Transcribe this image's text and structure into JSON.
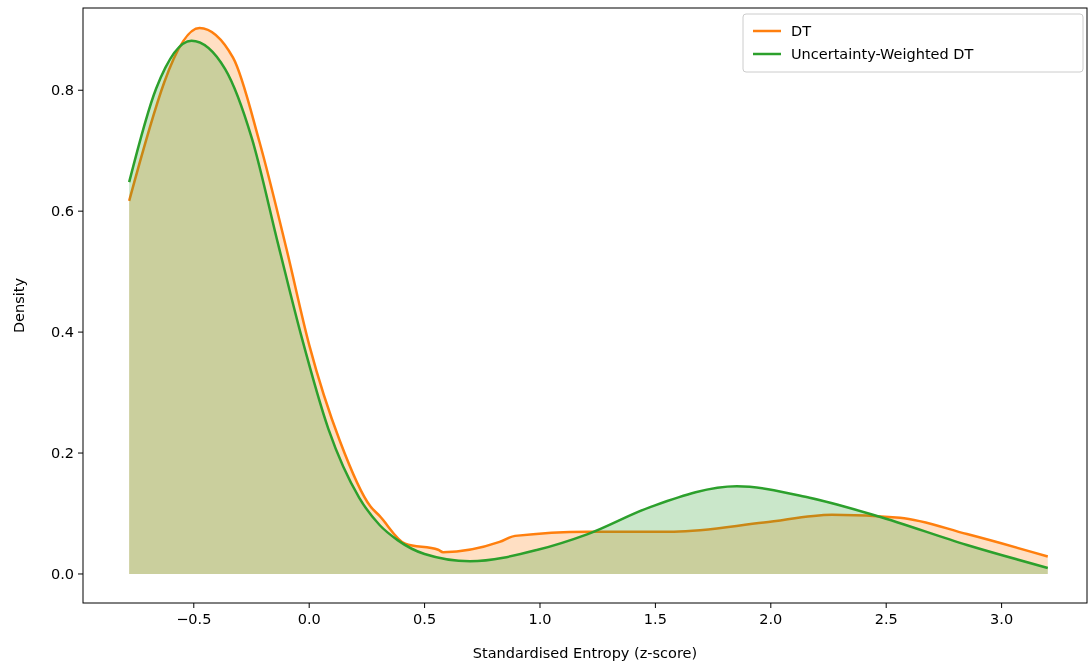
{
  "chart_data": {
    "type": "area",
    "xlabel": "Standardised Entropy (z-score)",
    "ylabel": "Density",
    "xlim": [
      -0.98,
      3.37
    ],
    "ylim": [
      -0.048,
      0.936
    ],
    "xticks": [
      {
        "value": -0.5,
        "label": "−0.5"
      },
      {
        "value": 0,
        "label": "0.0"
      },
      {
        "value": 0.5,
        "label": "0.5"
      },
      {
        "value": 1,
        "label": "1.0"
      },
      {
        "value": 1.5,
        "label": "1.5"
      },
      {
        "value": 2,
        "label": "2.0"
      },
      {
        "value": 2.5,
        "label": "2.5"
      },
      {
        "value": 3,
        "label": "3.0"
      }
    ],
    "yticks": [
      {
        "value": 0,
        "label": "0.0"
      },
      {
        "value": 0.2,
        "label": "0.2"
      },
      {
        "value": 0.4,
        "label": "0.4"
      },
      {
        "value": 0.6,
        "label": "0.6"
      },
      {
        "value": 0.8,
        "label": "0.8"
      }
    ],
    "grid": false,
    "legend": "top right",
    "series": [
      {
        "name": "DT",
        "color": "#ff7f0e",
        "x": [
          -0.78,
          -0.475,
          -0.33,
          -0.215,
          -0.098,
          0,
          0.133,
          0.265,
          0.305,
          0.416,
          0.559,
          0.58,
          0.825,
          0.892,
          1.207,
          1.58,
          1.97,
          2.265,
          2.56,
          2.85,
          3.2
        ],
        "values": [
          0.617,
          0.903,
          0.854,
          0.714,
          0.537,
          0.379,
          0.22,
          0.112,
          0.096,
          0.05,
          0.04,
          0.036,
          0.053,
          0.063,
          0.07,
          0.07,
          0.085,
          0.098,
          0.093,
          0.066,
          0.029
        ]
      },
      {
        "name": "Uncertainty-Weighted DT",
        "color": "#2ca02c",
        "x": [
          -0.78,
          -0.663,
          -0.51,
          -0.364,
          -0.248,
          -0.133,
          -0.033,
          0.083,
          0.217,
          0.305,
          0.383,
          0.5,
          0.697,
          0.99,
          1.207,
          1.48,
          1.853,
          2.168,
          2.46,
          2.85,
          3.2
        ],
        "values": [
          0.648,
          0.803,
          0.882,
          0.835,
          0.72,
          0.543,
          0.392,
          0.24,
          0.126,
          0.081,
          0.056,
          0.033,
          0.021,
          0.04,
          0.066,
          0.111,
          0.145,
          0.126,
          0.096,
          0.048,
          0.01
        ]
      }
    ]
  }
}
